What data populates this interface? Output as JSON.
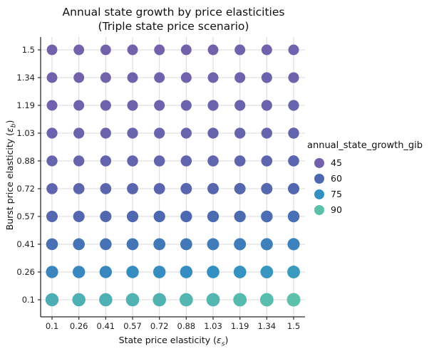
{
  "chart_data": {
    "type": "scatter",
    "title_line1": "Annual state growth by price elasticities",
    "title_line2": "(Triple state price scenario)",
    "xlabel": {
      "text": "State price elasticity (",
      "symbol": "ε",
      "sub": "s",
      "close": ")"
    },
    "ylabel": {
      "text": "Burst price elasticity (",
      "symbol": "ε",
      "sub": "b",
      "close": ")"
    },
    "x_categories": [
      "0.1",
      "0.26",
      "0.41",
      "0.57",
      "0.72",
      "0.88",
      "1.03",
      "1.19",
      "1.34",
      "1.5"
    ],
    "y_categories_top_to_bottom": [
      "1.5",
      "1.34",
      "1.19",
      "1.03",
      "0.88",
      "0.72",
      "0.57",
      "0.41",
      "0.26",
      "0.1"
    ],
    "values_rows_top_to_bottom": [
      [
        44,
        44,
        44,
        45,
        45,
        45,
        45,
        46,
        46,
        46
      ],
      [
        45,
        45,
        45,
        46,
        46,
        46,
        46,
        47,
        47,
        47
      ],
      [
        46,
        46,
        47,
        47,
        47,
        47,
        48,
        48,
        48,
        49
      ],
      [
        48,
        48,
        48,
        49,
        49,
        49,
        50,
        50,
        50,
        51
      ],
      [
        50,
        50,
        51,
        51,
        52,
        52,
        52,
        53,
        53,
        54
      ],
      [
        53,
        54,
        54,
        55,
        55,
        56,
        56,
        57,
        57,
        58
      ],
      [
        57,
        58,
        58,
        59,
        60,
        60,
        61,
        61,
        62,
        63
      ],
      [
        63,
        64,
        64,
        65,
        66,
        66,
        67,
        68,
        69,
        70
      ],
      [
        71,
        72,
        72,
        73,
        74,
        74,
        75,
        76,
        77,
        78
      ],
      [
        84,
        85,
        85,
        86,
        86,
        87,
        87,
        88,
        89,
        90
      ]
    ],
    "legend": {
      "title": "annual_state_growth_gib",
      "entries": [
        {
          "label": "45",
          "value": 45
        },
        {
          "label": "60",
          "value": 60
        },
        {
          "label": "75",
          "value": 75
        },
        {
          "label": "90",
          "value": 90
        }
      ]
    },
    "color_scale": {
      "stops": [
        [
          45,
          "#7262ac"
        ],
        [
          60,
          "#4d68b0"
        ],
        [
          75,
          "#3390c3"
        ],
        [
          90,
          "#5cc0ab"
        ]
      ]
    },
    "style": {
      "grid_color": "#d8d8d8",
      "spine_color": "#2b2b2b",
      "tick_label_color": "#222222",
      "grid_on": true,
      "legend_position": "right"
    }
  }
}
